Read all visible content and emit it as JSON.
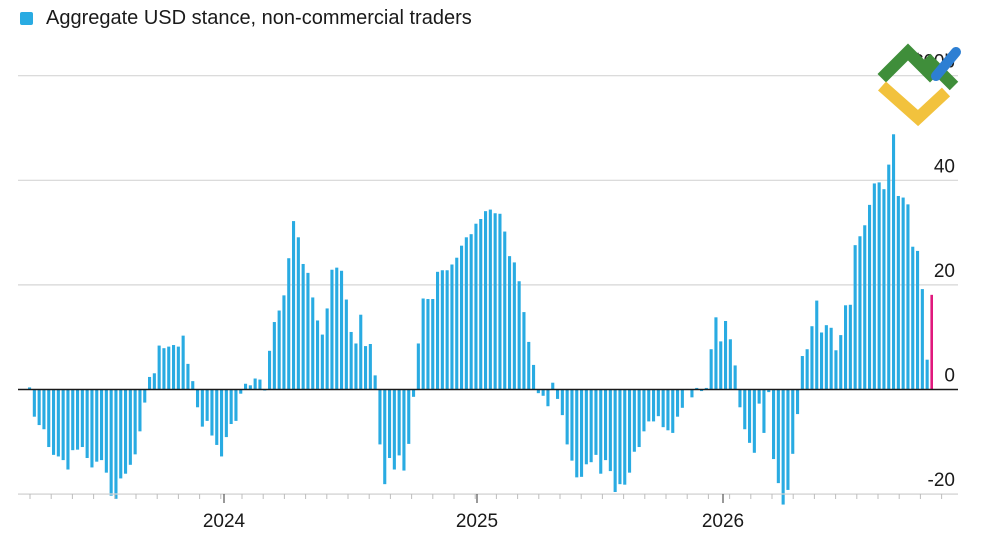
{
  "legend": {
    "label": "Aggregate USD stance, non-commercial traders"
  },
  "logo_name": "litefinance-logo",
  "colors": {
    "bar": "#29abe2",
    "last_bar": "#e0197d",
    "grid": "#d6d6d6",
    "zero": "#1a1a1a"
  },
  "chart_data": {
    "type": "bar",
    "ylabel": "",
    "y_unit": "$b",
    "ylim": [
      -20,
      60
    ],
    "yticks": [
      -20,
      0,
      20,
      40,
      60
    ],
    "ytick_labels": [
      "-20",
      "0",
      "20",
      "40",
      "$60b"
    ],
    "x_ticks": [
      "2024",
      "2025",
      "2026"
    ],
    "grid": true,
    "series": [
      {
        "values": [
          0.4,
          -5.2,
          -6.8,
          -7.6,
          -11,
          -12.5,
          -12.8,
          -13.5,
          -15.3,
          -11.6,
          -11.5,
          -11,
          -13.1,
          -14.9,
          -13.8,
          -13.5,
          -15.9,
          -20.3,
          -20.9,
          -17,
          -16.1,
          -14.4,
          -12.4,
          -8,
          -2.5,
          2.4,
          3.1,
          8.4,
          7.9,
          8.2,
          8.5,
          8.2,
          10.3,
          4.9,
          1.6,
          -3.4,
          -7.1,
          -6,
          -8.8,
          -10.6,
          -12.8,
          -9.1,
          -6.6,
          -6,
          -0.8,
          1.1,
          0.8,
          2.1,
          1.9,
          -0.2,
          7.4,
          12.9,
          15.1,
          18,
          25.1,
          32.2,
          29.1,
          24,
          22.3,
          17.6,
          13.2,
          10.5,
          15.5,
          22.9,
          23.3,
          22.7,
          17.2,
          11,
          8.8,
          14.3,
          8.3,
          8.7,
          2.7,
          -10.5,
          -18.1,
          -13.1,
          -15.3,
          -12.6,
          -15.5,
          -10.4,
          -1.4,
          8.8,
          17.4,
          17.3,
          17.3,
          22.5,
          22.8,
          22.8,
          23.9,
          25.2,
          27.5,
          29.1,
          29.7,
          31.7,
          32.6,
          34.1,
          34.4,
          33.7,
          33.6,
          30.2,
          25.5,
          24.3,
          20.7,
          14.8,
          9.1,
          4.7,
          -0.7,
          -1.2,
          -3.2,
          1.3,
          -1.8,
          -4.9,
          -10.5,
          -13.6,
          -16.8,
          -16.7,
          -14.3,
          -13.9,
          -12.5,
          -16.1,
          -13.5,
          -15.6,
          -19.6,
          -18.1,
          -18.2,
          -15.9,
          -11.9,
          -11,
          -8,
          -6.1,
          -6.1,
          -5.1,
          -7.2,
          -7.8,
          -8.3,
          -5.2,
          -3.5,
          0.1,
          -1.5,
          0.3,
          -0.3,
          0.3,
          7.7,
          13.8,
          9.2,
          13.1,
          9.6,
          4.6,
          -3.4,
          -7.6,
          -10.2,
          -12.1,
          -2.7,
          -8.3,
          -0.5,
          -13.3,
          -17.9,
          -22,
          -19.2,
          -12.3,
          -4.7,
          6.4,
          7.7,
          12.1,
          17,
          10.9,
          12.3,
          11.8,
          7.5,
          10.4,
          16.1,
          16.2,
          27.6,
          29.3,
          31.4,
          35.3,
          39.4,
          39.6,
          38.3,
          43,
          48.8,
          37,
          36.7,
          35.4,
          27.3,
          26.5,
          19.2,
          5.7,
          18.1
        ]
      }
    ]
  }
}
